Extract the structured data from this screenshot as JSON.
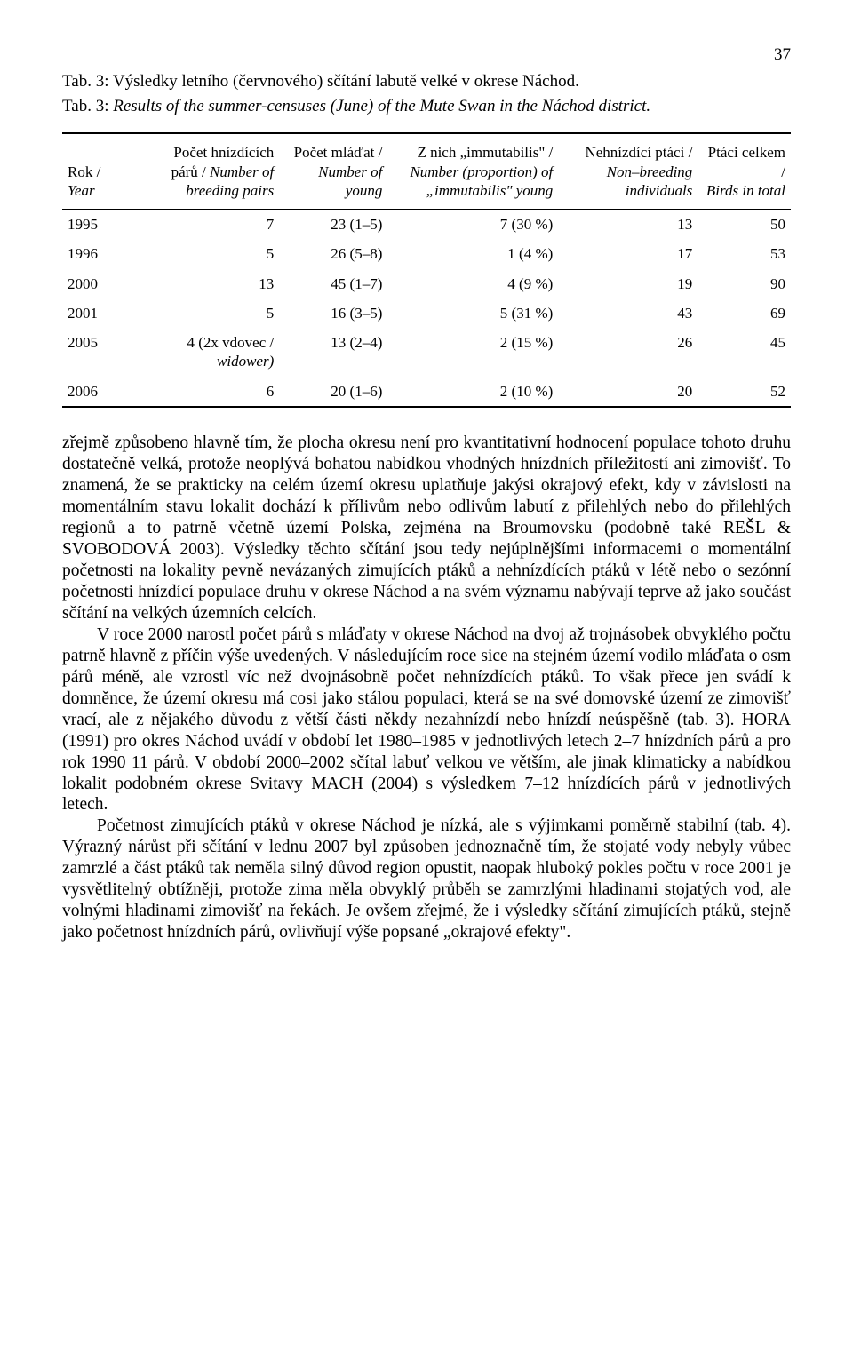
{
  "page_number": "37",
  "captions": {
    "cz": "Tab. 3: Výsledky letního (červnového) sčítání labutě velké v okrese Náchod.",
    "en_prefix": "Tab. 3: ",
    "en_rest": "Results of the summer-censuses (June) of the Mute Swan in the Náchod district."
  },
  "table": {
    "columns": [
      {
        "cz": "Rok /",
        "en": "Year",
        "class": "col-year"
      },
      {
        "cz": "Počet hnízdících párů / ",
        "en": "Number of breeding pairs",
        "class": "col-pairs"
      },
      {
        "cz": "Počet mláďat /",
        "en": "Number of young",
        "class": "col-young"
      },
      {
        "cz": "Z nich „immutabilis\" /",
        "en": "Number (proportion) of „immutabilis\" young",
        "class": "col-immut"
      },
      {
        "cz": "Nehnízdící ptáci /",
        "en": "Non–breeding individuals",
        "class": "col-nonbr"
      },
      {
        "cz": "Ptáci celkem /",
        "en": "Birds in total",
        "class": "col-total"
      }
    ],
    "rows": [
      {
        "year": "1995",
        "pairs": "7",
        "pairs_note": "",
        "young": "23 (1–5)",
        "immut": "7 (30 %)",
        "nonbr": "13",
        "total": "50"
      },
      {
        "year": "1996",
        "pairs": "5",
        "pairs_note": "",
        "young": "26 (5–8)",
        "immut": "1 (4 %)",
        "nonbr": "17",
        "total": "53"
      },
      {
        "year": "2000",
        "pairs": "13",
        "pairs_note": "",
        "young": "45 (1–7)",
        "immut": "4 (9 %)",
        "nonbr": "19",
        "total": "90"
      },
      {
        "year": "2001",
        "pairs": "5",
        "pairs_note": "",
        "young": "16 (3–5)",
        "immut": "5 (31 %)",
        "nonbr": "43",
        "total": "69"
      },
      {
        "year": "2005",
        "pairs": "4 (2x vdovec / ",
        "pairs_note": "widower)",
        "young": "13 (2–4)",
        "immut": "2 (15 %)",
        "nonbr": "26",
        "total": "45"
      },
      {
        "year": "2006",
        "pairs": "6",
        "pairs_note": "",
        "young": "20 (1–6)",
        "immut": "2 (10 %)",
        "nonbr": "20",
        "total": "52"
      }
    ]
  },
  "paragraphs": {
    "p1": "zřejmě způsobeno hlavně tím, že plocha okresu není pro kvantitativní hodnocení populace tohoto druhu dostatečně velká, protože neoplývá bohatou nabídkou vhodných hnízdních příležitostí ani zimovišť. To znamená, že se prakticky na celém území okresu uplatňuje jakýsi okrajový efekt, kdy v závislosti na momentálním stavu lokalit dochází k přílivům nebo odlivům labutí z přilehlých nebo do přilehlých regionů a to patrně včetně území Polska, zejména na Broumovsku (podobně také REŠL & SVOBODOVÁ 2003). Výsledky těchto sčítání jsou tedy nejúplnějšími informacemi o momentální početnosti na lokality pevně nevázaných zimujících ptáků a nehnízdících ptáků v létě nebo o sezónní početnosti hnízdící populace druhu v okrese Náchod a na svém významu nabývají teprve až jako součást sčítání na velkých územních celcích.",
    "p2": "V roce 2000 narostl počet párů s mláďaty v okrese Náchod na dvoj až trojnásobek obvyklého počtu patrně hlavně z příčin výše uvedených. V následujícím roce sice na stejném území vodilo mláďata o osm párů méně, ale vzrostl víc než dvojnásobně počet nehnízdících ptáků. To však přece jen svádí k domněnce, že území okresu má cosi jako stálou populaci, která se na své domovské území ze zimovišť vrací, ale z nějakého důvodu z větší části někdy nezahnízdí nebo hnízdí neúspěšně (tab. 3). HORA (1991) pro okres Náchod uvádí v období let 1980–1985 v jednotlivých letech 2–7 hnízdních párů a pro rok 1990 11 párů. V období 2000–2002 sčítal labuť velkou ve větším, ale jinak klimaticky a nabídkou lokalit podobném okrese Svitavy MACH (2004) s výsledkem 7–12 hnízdících párů v jednotlivých letech.",
    "p3": "Početnost zimujících ptáků v okrese Náchod je nízká, ale s výjimkami poměrně stabilní (tab. 4). Výrazný nárůst při sčítání v lednu 2007 byl způsoben jednoznačně tím, že stojaté vody nebyly vůbec zamrzlé a část ptáků tak neměla silný důvod region opustit, naopak hluboký pokles počtu v roce 2001 je vysvětlitelný obtížněji, protože zima měla obvyklý průběh se zamrzlými hladinami stojatých vod, ale volnými hladinami zimovišť na řekách. Je ovšem zřejmé, že i výsledky sčítání zimujících ptáků, stejně jako početnost hnízdních párů, ovlivňují výše popsané „okrajové efekty\"."
  }
}
